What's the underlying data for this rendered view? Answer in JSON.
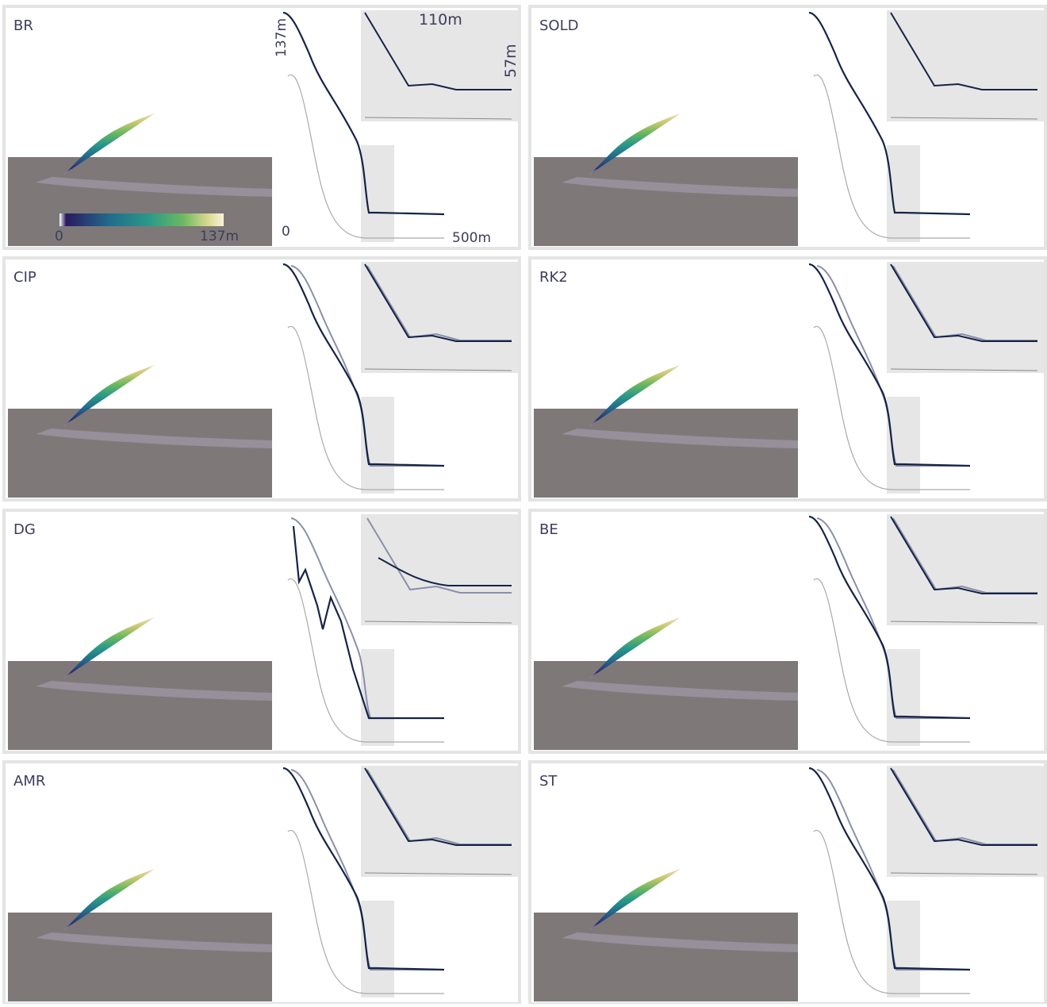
{
  "figure": {
    "panels": [
      {
        "label": "BR"
      },
      {
        "label": "SOLD"
      },
      {
        "label": "CIP"
      },
      {
        "label": "RK2"
      },
      {
        "label": "DG"
      },
      {
        "label": "BE"
      },
      {
        "label": "AMR"
      },
      {
        "label": "ST"
      }
    ],
    "colorbar": {
      "min": "0",
      "max": "137m"
    },
    "axes": {
      "height": "137m",
      "origin": "0",
      "length": "500m",
      "inset_width": "110m",
      "inset_height": "57m"
    }
  }
}
